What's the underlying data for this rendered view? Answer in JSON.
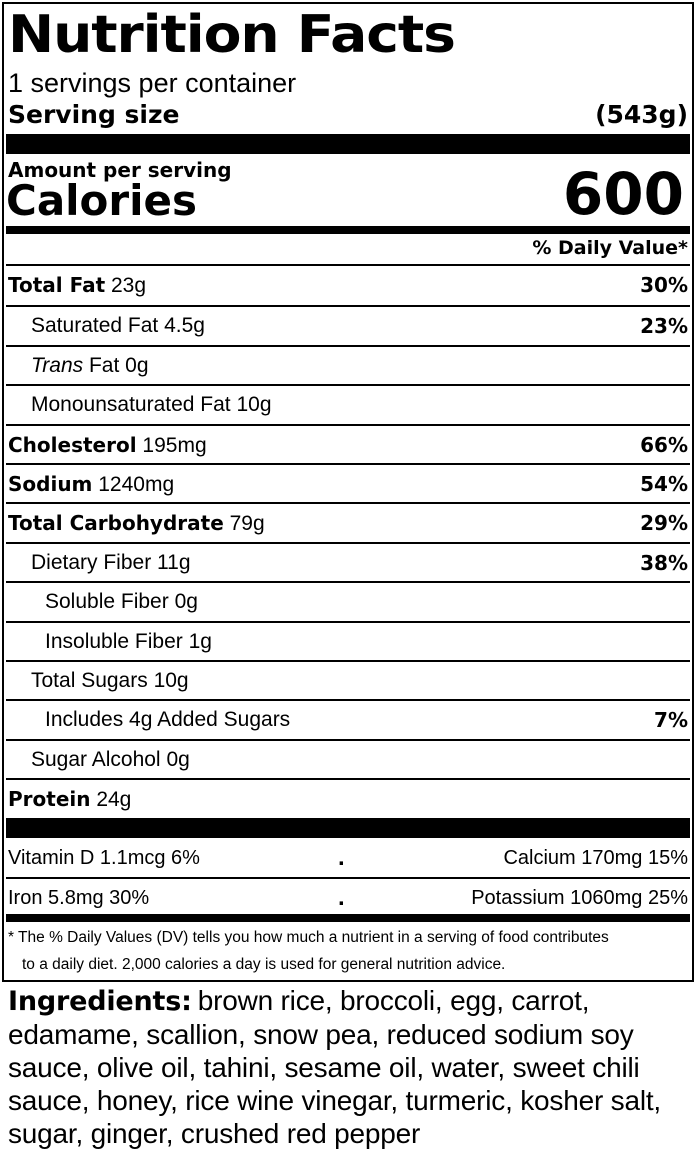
{
  "label": {
    "title": "Nutrition Facts",
    "servings_per_container": "1 servings per container",
    "serving_size_label": "Serving size",
    "serving_size_value": "(543g)",
    "amount_per_serving": "Amount per serving",
    "calories_label": "Calories",
    "calories_value": "600",
    "dv_header": "% Daily Value*"
  },
  "nutrients": [
    {
      "name": "Total Fat",
      "amount": "23g",
      "pct": "30%"
    },
    {
      "name": "Saturated Fat",
      "amount": "4.5g",
      "pct": "23%"
    },
    {
      "name_italic": "Trans",
      "name": "Fat",
      "amount": "0g",
      "pct": ""
    },
    {
      "name": "Monounsaturated Fat",
      "amount": "10g",
      "pct": ""
    },
    {
      "name": "Cholesterol",
      "amount": "195mg",
      "pct": "66%"
    },
    {
      "name": "Sodium",
      "amount": "1240mg",
      "pct": "54%"
    },
    {
      "name": "Total Carbohydrate",
      "amount": "79g",
      "pct": "29%"
    },
    {
      "name": "Dietary Fiber",
      "amount": "11g",
      "pct": "38%"
    },
    {
      "name": "Soluble Fiber",
      "amount": "0g",
      "pct": ""
    },
    {
      "name": "Insoluble Fiber",
      "amount": "1g",
      "pct": ""
    },
    {
      "name": "Total Sugars",
      "amount": "10g",
      "pct": ""
    },
    {
      "name": "Includes 4g Added Sugars",
      "amount": "",
      "pct": "7%"
    },
    {
      "name": "Sugar Alcohol",
      "amount": "0g",
      "pct": ""
    },
    {
      "name": "Protein",
      "amount": "24g",
      "pct": ""
    }
  ],
  "vitamins": {
    "vitamin_d": "Vitamin D 1.1mcg 6%",
    "calcium": "Calcium 170mg 15%",
    "iron": "Iron 5.8mg 30%",
    "potassium": "Potassium 1060mg 25%",
    "separator": "."
  },
  "footnote": {
    "line1": "* The % Daily Values (DV) tells you how much a nutrient in a serving of food contributes",
    "line2": "to a daily diet. 2,000 calories a day is used for general nutrition advice."
  },
  "ingredients": {
    "label": "Ingredients:",
    "text": "brown rice, broccoli, egg, carrot, edamame, scallion, snow pea, reduced sodium soy sauce, olive oil, tahini, sesame oil, water, sweet chili sauce, honey, rice wine vinegar, turmeric, kosher salt, sugar, ginger, crushed red pepper"
  }
}
